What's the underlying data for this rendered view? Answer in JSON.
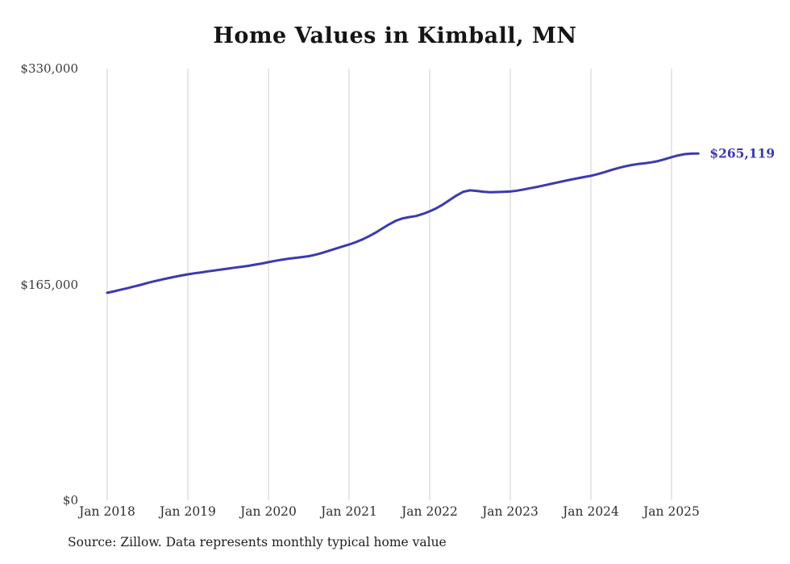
{
  "title": "Home Values in Kimball, MN",
  "source_note": "Source: Zillow. Data represents monthly typical home value",
  "chart_data": {
    "type": "line",
    "title": "Home Values in Kimball, MN",
    "series_name": "Monthly typical home value",
    "x_start": "Jan 2018",
    "x_frequency": "monthly",
    "x_tick_labels": [
      "Jan 2018",
      "Jan 2019",
      "Jan 2020",
      "Jan 2021",
      "Jan 2022",
      "Jan 2023",
      "Jan 2024",
      "Jan 2025"
    ],
    "y_ticks": [
      0,
      165000,
      330000
    ],
    "y_tick_labels": [
      "$0",
      "$165,000",
      "$330,000"
    ],
    "ylim": [
      0,
      330000
    ],
    "values": [
      158600,
      159700,
      160900,
      162100,
      163400,
      164700,
      166100,
      167400,
      168600,
      169700,
      170800,
      171800,
      172700,
      173500,
      174200,
      175000,
      175700,
      176400,
      177100,
      177800,
      178500,
      179200,
      180100,
      181000,
      182000,
      183000,
      183900,
      184700,
      185300,
      185900,
      186600,
      187700,
      189100,
      190700,
      192300,
      193900,
      195500,
      197300,
      199400,
      201900,
      204700,
      207900,
      211000,
      213700,
      215500,
      216500,
      217300,
      218900,
      220900,
      223200,
      226200,
      229600,
      233000,
      235800,
      236900,
      236500,
      235900,
      235500,
      235600,
      235800,
      236000,
      236700,
      237600,
      238600,
      239600,
      240700,
      241800,
      242900,
      244000,
      245100,
      246100,
      247100,
      248000,
      249300,
      250800,
      252400,
      253900,
      255200,
      256200,
      257000,
      257600,
      258300,
      259300,
      260700,
      262300,
      263600,
      264600,
      265000,
      265119
    ],
    "last_value": 265119,
    "annotation": "$265,119",
    "line_color": "#3c3aae",
    "grid_color": "#cfcfcf",
    "legend": "none",
    "grid": "vertical-only"
  }
}
